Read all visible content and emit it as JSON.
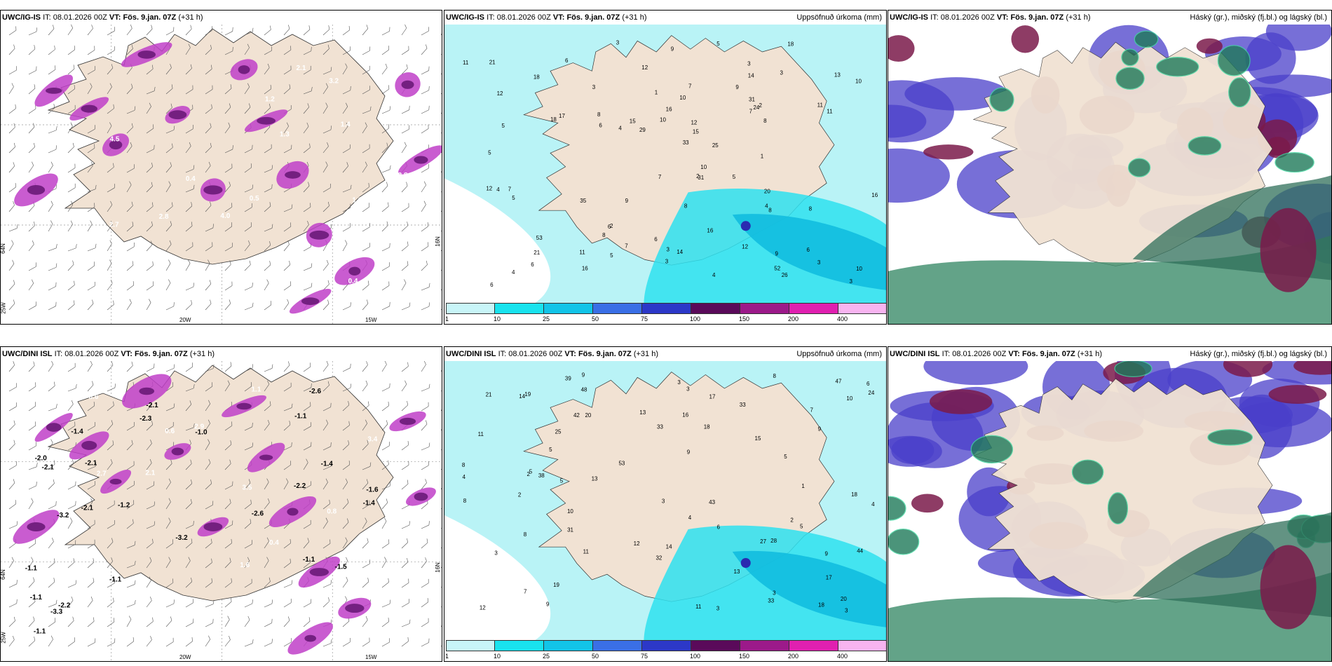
{
  "panels": [
    {
      "id": "p1",
      "model": "UWC/IG-IS",
      "it_label": "IT:",
      "it": "08.01.2026 00Z",
      "vt_label": "VT:",
      "vt": "Fös. 9.jan. 07Z",
      "offset": "(+31 h)",
      "right_title": "",
      "lon_labels": [
        "20W",
        "15W"
      ],
      "lat_labels": [
        "64N",
        "25W",
        "16N"
      ],
      "values": [
        "3.2",
        "2.8",
        "3.1",
        "4.5",
        "1.4",
        "2.2",
        "2.7",
        "1.8",
        "2.1",
        "1.7",
        "0.4",
        "0.4",
        "0.3",
        "1.3",
        "0.5",
        "1.6",
        "0.6",
        "4.0",
        "2.8",
        "1.2"
      ]
    },
    {
      "id": "p2",
      "model": "UWC/IG-IS",
      "it_label": "IT:",
      "it": "08.01.2026 00Z",
      "vt_label": "VT:",
      "vt": "Fös. 9.jan. 07Z",
      "offset": "(+31 h)",
      "right_title": "Uppsöfnuð úrkoma (mm)",
      "values": [
        "4",
        "8",
        "10",
        "8",
        "12",
        "5",
        "6",
        "3",
        "9",
        "8",
        "3",
        "6",
        "7",
        "9",
        "12",
        "8",
        "4",
        "5",
        "7",
        "10",
        "11",
        "6",
        "3",
        "5",
        "8",
        "14",
        "15",
        "10",
        "11",
        "16",
        "3",
        "9",
        "7",
        "6",
        "2",
        "4",
        "3",
        "8",
        "5",
        "6",
        "18",
        "2",
        "3",
        "5",
        "1",
        "4",
        "16",
        "14",
        "16",
        "10",
        "12",
        "10",
        "21",
        "52",
        "53",
        "18",
        "11",
        "29",
        "25",
        "20",
        "15",
        "31",
        "24",
        "13",
        "26",
        "7",
        "18",
        "21",
        "16",
        "12",
        "17",
        "31",
        "33",
        "35",
        "11",
        "12",
        "9",
        "3",
        "1",
        "7",
        "6",
        "4",
        "2",
        "3",
        "6",
        "5"
      ]
    },
    {
      "id": "p3",
      "model": "UWC/IG-IS",
      "it_label": "IT:",
      "it": "08.01.2026 00Z",
      "vt_label": "VT:",
      "vt": "Fös. 9.jan. 07Z",
      "offset": "(+31 h)",
      "right_title": "Háský (gr.), miðský (fj.bl.) og lágský (bl.)"
    },
    {
      "id": "p4",
      "model": "UWC/DINI ISL",
      "it_label": "IT:",
      "it": "08.01.2026 00Z",
      "vt_label": "VT:",
      "vt": "Fös. 9.jan. 07Z",
      "offset": "(+31 h)",
      "right_title": "",
      "lon_labels": [
        "20W",
        "15W"
      ],
      "lat_labels": [
        "64N",
        "25W",
        "16N"
      ],
      "values": [
        "-1.5",
        "-2.0",
        "-2.3",
        "0.6",
        "4.0",
        "3.4",
        "-1.1",
        "-1.1",
        "-2.2",
        "-2.1",
        "3.6",
        "2.1",
        "-1.1",
        "-1.6",
        "2.2",
        "-2.2",
        "-1.0",
        "-2.1",
        "2.9",
        "-1.1",
        "-1.2",
        "0.4",
        "3.5",
        "1.3",
        "1.1",
        "0.8",
        "5.6",
        "4.1",
        "2.7",
        "-3.2",
        "-1.4",
        "-2.1",
        "-2.6",
        "-3.2",
        "-1.1",
        "-2.6",
        "-1.4",
        "-3.3",
        "-1.4",
        "1.6",
        "-1.1",
        "-2.1"
      ]
    },
    {
      "id": "p5",
      "model": "UWC/DINI ISL",
      "it_label": "IT:",
      "it": "08.01.2026 00Z",
      "vt_label": "VT:",
      "vt": "Fös. 9.jan. 07Z",
      "offset": "(+31 h)",
      "right_title": "Uppsöfnuð úrkoma (mm)",
      "values": [
        "9",
        "7",
        "5",
        "5",
        "5",
        "11",
        "3",
        "3",
        "10",
        "8",
        "9",
        "13",
        "20",
        "16",
        "7",
        "8",
        "9",
        "8",
        "12",
        "13",
        "11",
        "10",
        "9",
        "3",
        "2",
        "3",
        "5",
        "4",
        "18",
        "6",
        "9",
        "2",
        "3",
        "11",
        "12",
        "14",
        "17",
        "14",
        "18",
        "15",
        "20",
        "19",
        "18",
        "25",
        "33",
        "33",
        "31",
        "32",
        "33",
        "27",
        "28",
        "43",
        "44",
        "47",
        "53",
        "48",
        "42",
        "19",
        "21",
        "38",
        "39",
        "17",
        "24",
        "8",
        "5",
        "4",
        "3",
        "13",
        "3",
        "1",
        "2",
        "6",
        "4"
      ]
    },
    {
      "id": "p6",
      "model": "UWC/DINI ISL",
      "it_label": "IT:",
      "it": "08.01.2026 00Z",
      "vt_label": "VT:",
      "vt": "Fös. 9.jan. 07Z",
      "offset": "(+31 h)",
      "right_title": "Háský (gr.), miðský (fj.bl.) og lágský (bl.)"
    }
  ],
  "colorbar": {
    "labels": [
      "1",
      "10",
      "25",
      "50",
      "75",
      "100",
      "150",
      "200",
      "400"
    ],
    "colors": [
      "#c8f5f8",
      "#19e3ee",
      "#12c4e8",
      "#3a6fe6",
      "#2c38c8",
      "#5a0a5a",
      "#9c1a8a",
      "#e020b0",
      "#f8b4f0"
    ]
  },
  "palette": {
    "land": "#f1e2d3",
    "precip_light": "#b9f3f6",
    "precip_mid": "#2ee0ee",
    "precip_dark": "#12bcdf",
    "snow_purple": "#c040c8",
    "snow_dark": "#6a1a78",
    "cloud_high": "#1f7a5a",
    "cloud_mid": "#4a3fc9",
    "cloud_low": "#7a1a4a"
  }
}
